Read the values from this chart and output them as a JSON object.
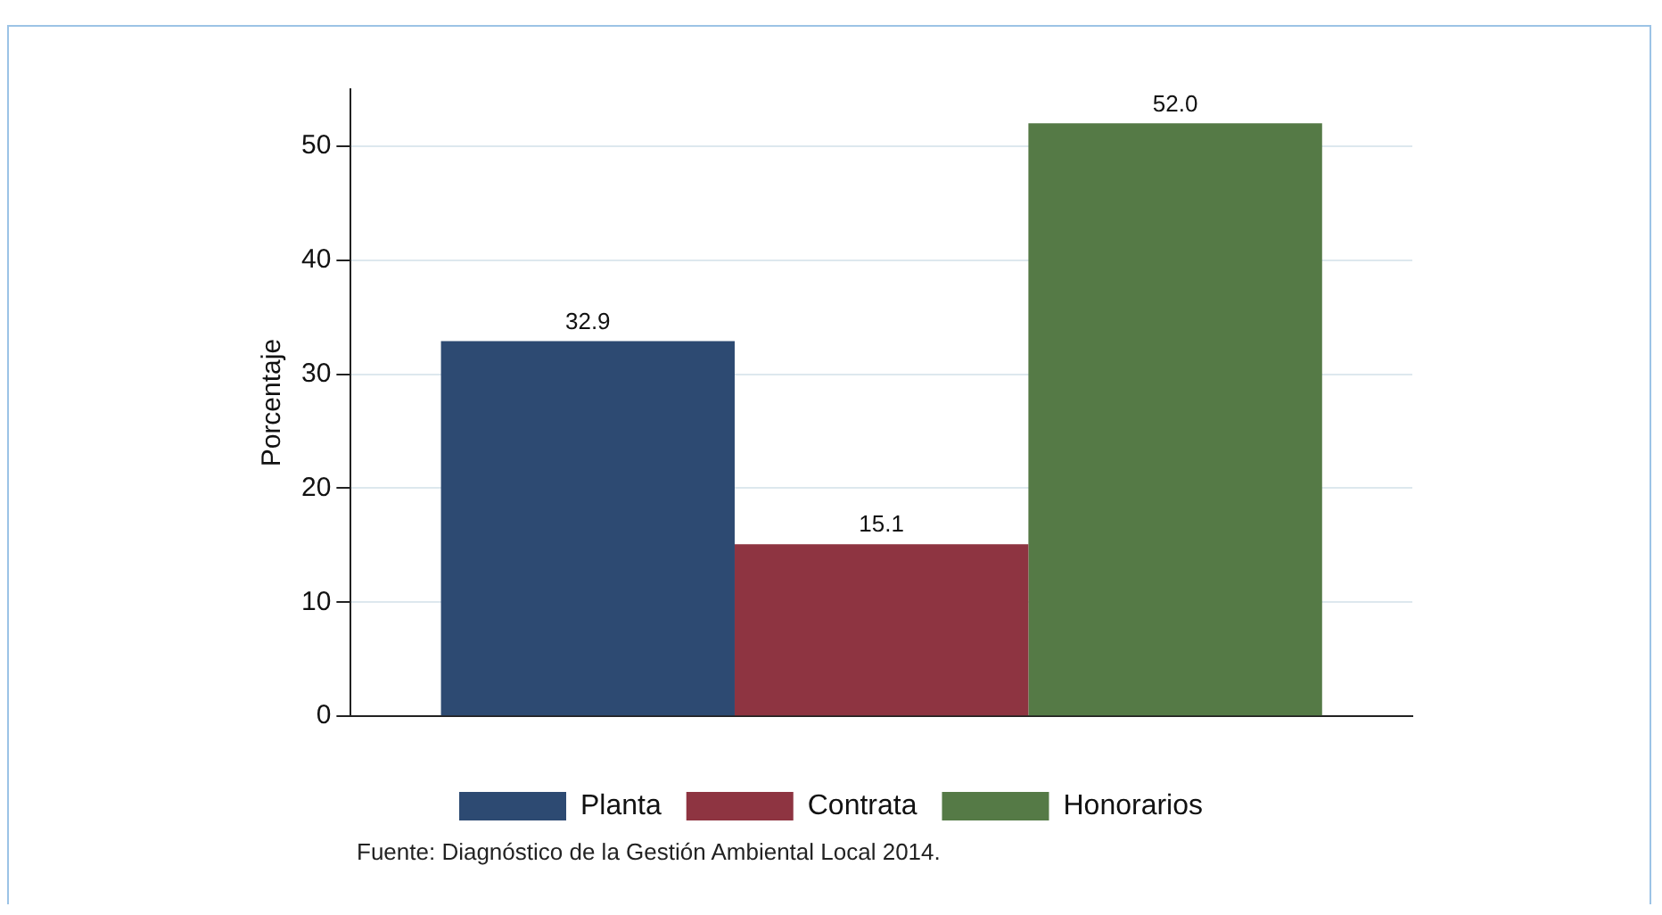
{
  "chart_data": {
    "type": "bar",
    "ylabel": "Porcentaje",
    "categories": [
      null
    ],
    "series": [
      {
        "name": "Planta",
        "color": "#2d4a72",
        "values": [
          32.9
        ],
        "value_labels": [
          "32.9"
        ]
      },
      {
        "name": "Contrata",
        "color": "#8e3441",
        "values": [
          15.1
        ],
        "value_labels": [
          "15.1"
        ]
      },
      {
        "name": "Honorarios",
        "color": "#557a46",
        "values": [
          52.0
        ],
        "value_labels": [
          "52.0"
        ]
      }
    ],
    "ylim": [
      0,
      55
    ],
    "yticks": [
      0,
      10,
      20,
      30,
      40,
      50
    ],
    "grid": "y",
    "legend": "bottom",
    "annotations": [
      "Fuente: Diagnóstico de la Gestión Ambiental Local 2014."
    ]
  }
}
